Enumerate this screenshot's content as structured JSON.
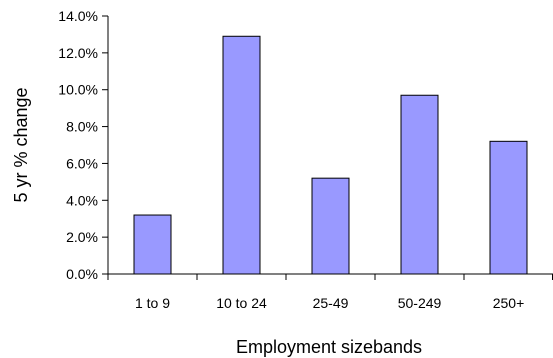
{
  "chart_data": {
    "type": "bar",
    "title": "",
    "xlabel": "Employment sizebands",
    "ylabel": "5 yr % change",
    "categories": [
      "1 to 9",
      "10 to 24",
      "25-49",
      "50-249",
      "250+"
    ],
    "values": [
      3.2,
      12.9,
      5.2,
      9.7,
      7.2
    ],
    "value_unit": "%",
    "ylim": [
      0,
      14
    ],
    "yticks": [
      0,
      2,
      4,
      6,
      8,
      10,
      12,
      14
    ],
    "ytick_labels": [
      "0.0%",
      "2.0%",
      "4.0%",
      "6.0%",
      "8.0%",
      "10.0%",
      "12.0%",
      "14.0%"
    ],
    "grid": false,
    "legend": "none",
    "bar_color": "#9999ff",
    "bar_edge_color": "#000000"
  }
}
